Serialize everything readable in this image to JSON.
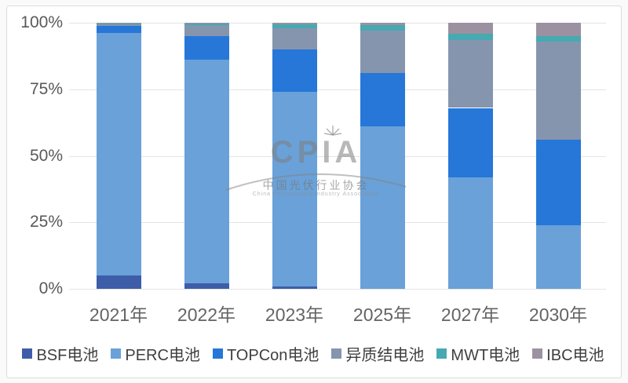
{
  "watermark": {
    "brand": "CPIA",
    "line_cn": "中国光伏行业协会",
    "line_en": "China Photovoltaic Industry Association"
  },
  "chart_data": {
    "type": "bar",
    "stacked": true,
    "unit": "percent",
    "title": "",
    "xlabel": "",
    "ylabel": "",
    "categories": [
      "2021年",
      "2022年",
      "2023年",
      "2025年",
      "2027年",
      "2030年"
    ],
    "series": [
      {
        "name": "BSF电池",
        "color": "#3d5da9",
        "values": [
          5,
          2,
          1,
          0,
          0,
          0
        ]
      },
      {
        "name": "PERC电池",
        "color": "#6aa1d8",
        "values": [
          91.2,
          84,
          73,
          61,
          42,
          24
        ]
      },
      {
        "name": "TOPCon电池",
        "color": "#2677d8",
        "values": [
          2.5,
          9,
          16,
          20,
          26,
          32
        ]
      },
      {
        "name": "异质结电池",
        "color": "#8695ae",
        "values": [
          0.8,
          4,
          8,
          16,
          25.5,
          37
        ]
      },
      {
        "name": "MWT电池",
        "color": "#47a9b2",
        "values": [
          0.3,
          0.8,
          1.5,
          2,
          2.5,
          2
        ]
      },
      {
        "name": "IBC电池",
        "color": "#9c91a0",
        "values": [
          0.2,
          0.2,
          0.5,
          1,
          4,
          5
        ]
      }
    ],
    "y_axis": {
      "min": 0,
      "max": 100,
      "ticks": [
        "0%",
        "25%",
        "50%",
        "75%",
        "100%"
      ],
      "grid": true
    },
    "legend_position": "bottom"
  }
}
